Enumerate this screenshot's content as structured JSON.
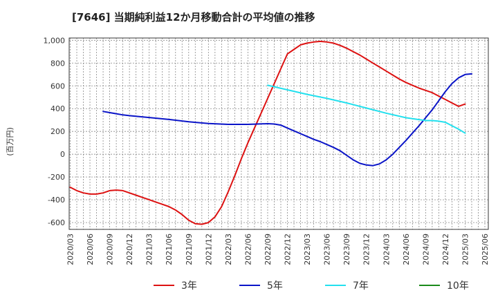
{
  "chart_data": {
    "type": "line",
    "title": "[7646]  当期純利益12か月移動合計の平均値の推移",
    "ylabel": "(百万円)",
    "xlabel": "",
    "ylim": [
      -660,
      1020
    ],
    "yticks": [
      -600,
      -400,
      -200,
      0,
      200,
      400,
      600,
      800,
      1000
    ],
    "ytick_labels": [
      "-600",
      "-400",
      "-200",
      "0",
      "200",
      "400",
      "600",
      "800",
      "1,000"
    ],
    "xticks": [
      "2020/03",
      "2020/06",
      "2020/09",
      "2020/12",
      "2021/03",
      "2021/06",
      "2021/09",
      "2021/12",
      "2022/03",
      "2022/06",
      "2022/09",
      "2022/12",
      "2023/03",
      "2023/06",
      "2023/09",
      "2023/12",
      "2024/03",
      "2024/06",
      "2024/09",
      "2024/12",
      "2025/03",
      "2025/06"
    ],
    "grid": true,
    "legend_position": "bottom",
    "series": [
      {
        "name": "3年",
        "color": "#dd1111",
        "points": [
          [
            "2020/03",
            -290
          ],
          [
            "2020/04",
            -320
          ],
          [
            "2020/05",
            -340
          ],
          [
            "2020/06",
            -350
          ],
          [
            "2020/07",
            -350
          ],
          [
            "2020/08",
            -340
          ],
          [
            "2020/09",
            -320
          ],
          [
            "2020/10",
            -315
          ],
          [
            "2020/11",
            -320
          ],
          [
            "2020/12",
            -340
          ],
          [
            "2021/01",
            -360
          ],
          [
            "2021/02",
            -380
          ],
          [
            "2021/03",
            -400
          ],
          [
            "2021/04",
            -420
          ],
          [
            "2021/05",
            -440
          ],
          [
            "2021/06",
            -460
          ],
          [
            "2021/07",
            -490
          ],
          [
            "2021/08",
            -530
          ],
          [
            "2021/09",
            -580
          ],
          [
            "2021/10",
            -610
          ],
          [
            "2021/11",
            -615
          ],
          [
            "2021/12",
            -600
          ],
          [
            "2022/01",
            -550
          ],
          [
            "2022/02",
            -460
          ],
          [
            "2022/03",
            -330
          ],
          [
            "2022/04",
            -190
          ],
          [
            "2022/05",
            -40
          ],
          [
            "2022/06",
            100
          ],
          [
            "2022/07",
            230
          ],
          [
            "2022/08",
            360
          ],
          [
            "2022/09",
            490
          ],
          [
            "2022/10",
            620
          ],
          [
            "2022/11",
            750
          ],
          [
            "2022/12",
            880
          ],
          [
            "2023/01",
            920
          ],
          [
            "2023/02",
            960
          ],
          [
            "2023/03",
            975
          ],
          [
            "2023/04",
            985
          ],
          [
            "2023/05",
            990
          ],
          [
            "2023/06",
            985
          ],
          [
            "2023/07",
            975
          ],
          [
            "2023/08",
            955
          ],
          [
            "2023/09",
            930
          ],
          [
            "2023/10",
            900
          ],
          [
            "2023/11",
            870
          ],
          [
            "2023/12",
            835
          ],
          [
            "2024/01",
            800
          ],
          [
            "2024/02",
            765
          ],
          [
            "2024/03",
            730
          ],
          [
            "2024/04",
            695
          ],
          [
            "2024/05",
            660
          ],
          [
            "2024/06",
            630
          ],
          [
            "2024/07",
            605
          ],
          [
            "2024/08",
            580
          ],
          [
            "2024/09",
            560
          ],
          [
            "2024/10",
            540
          ],
          [
            "2024/11",
            510
          ],
          [
            "2024/12",
            480
          ],
          [
            "2025/01",
            450
          ],
          [
            "2025/02",
            420
          ],
          [
            "2025/03",
            440
          ]
        ]
      },
      {
        "name": "5年",
        "color": "#0a14c8",
        "points": [
          [
            "2020/08",
            375
          ],
          [
            "2020/09",
            365
          ],
          [
            "2020/10",
            355
          ],
          [
            "2020/11",
            345
          ],
          [
            "2020/12",
            338
          ],
          [
            "2021/03",
            322
          ],
          [
            "2021/06",
            305
          ],
          [
            "2021/09",
            285
          ],
          [
            "2021/12",
            270
          ],
          [
            "2022/03",
            262
          ],
          [
            "2022/06",
            262
          ],
          [
            "2022/09",
            268
          ],
          [
            "2022/10",
            265
          ],
          [
            "2022/11",
            255
          ],
          [
            "2022/12",
            230
          ],
          [
            "2023/01",
            205
          ],
          [
            "2023/02",
            180
          ],
          [
            "2023/03",
            155
          ],
          [
            "2023/04",
            130
          ],
          [
            "2023/05",
            110
          ],
          [
            "2023/06",
            85
          ],
          [
            "2023/07",
            60
          ],
          [
            "2023/08",
            30
          ],
          [
            "2023/09",
            -10
          ],
          [
            "2023/10",
            -50
          ],
          [
            "2023/11",
            -80
          ],
          [
            "2023/12",
            -95
          ],
          [
            "2024/01",
            -100
          ],
          [
            "2024/02",
            -85
          ],
          [
            "2024/03",
            -50
          ],
          [
            "2024/04",
            0
          ],
          [
            "2024/05",
            60
          ],
          [
            "2024/06",
            120
          ],
          [
            "2024/07",
            185
          ],
          [
            "2024/08",
            250
          ],
          [
            "2024/09",
            320
          ],
          [
            "2024/10",
            390
          ],
          [
            "2024/11",
            470
          ],
          [
            "2024/12",
            550
          ],
          [
            "2025/01",
            620
          ],
          [
            "2025/02",
            670
          ],
          [
            "2025/03",
            700
          ],
          [
            "2025/04",
            705
          ]
        ]
      },
      {
        "name": "7年",
        "color": "#22e0ee",
        "points": [
          [
            "2022/09",
            605
          ],
          [
            "2022/12",
            565
          ],
          [
            "2023/03",
            525
          ],
          [
            "2023/06",
            490
          ],
          [
            "2023/09",
            450
          ],
          [
            "2023/12",
            405
          ],
          [
            "2024/03",
            360
          ],
          [
            "2024/06",
            320
          ],
          [
            "2024/09",
            295
          ],
          [
            "2024/10",
            295
          ],
          [
            "2024/11",
            290
          ],
          [
            "2024/12",
            280
          ],
          [
            "2025/01",
            250
          ],
          [
            "2025/02",
            220
          ],
          [
            "2025/03",
            185
          ]
        ]
      },
      {
        "name": "10年",
        "color": "#1a8a1a",
        "points": []
      }
    ]
  }
}
